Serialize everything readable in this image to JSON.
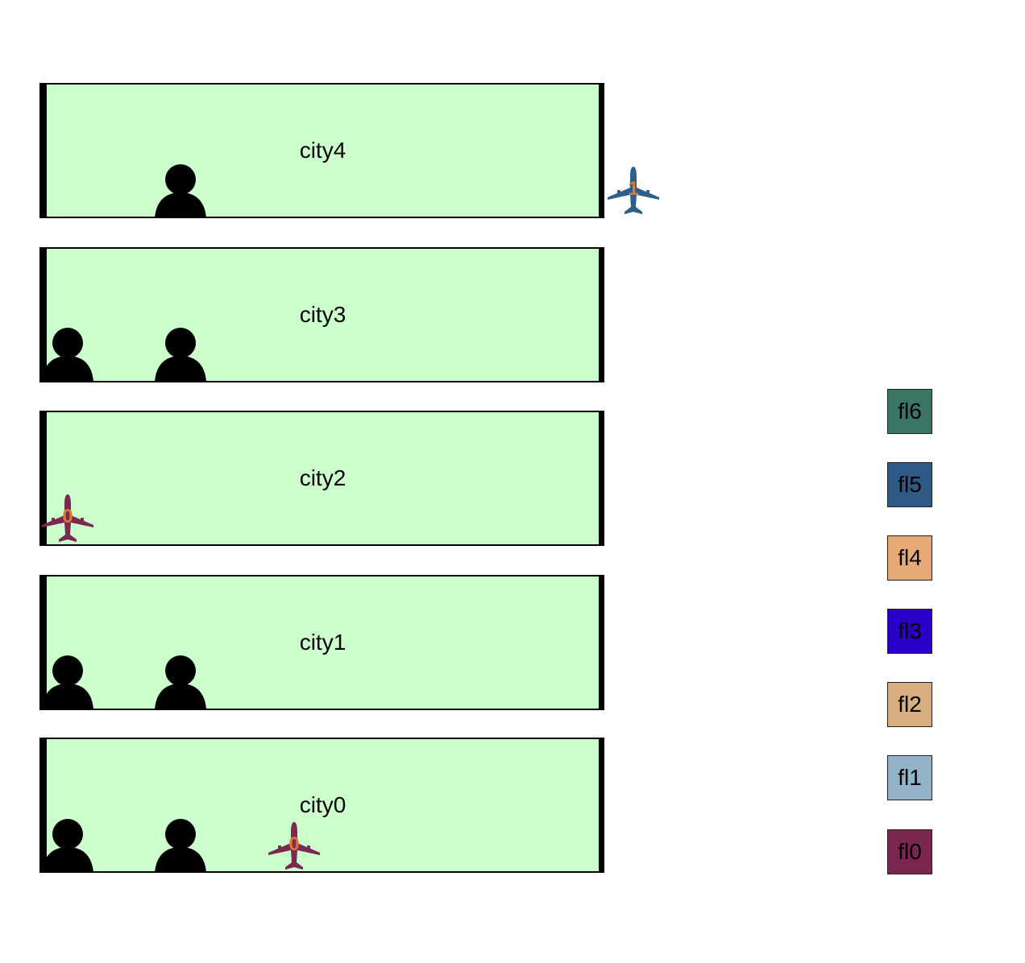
{
  "cities": [
    {
      "label": "city4"
    },
    {
      "label": "city3"
    },
    {
      "label": "city2"
    },
    {
      "label": "city1"
    },
    {
      "label": "city0"
    }
  ],
  "planes": [
    {
      "id": "plane-1",
      "number": "1",
      "color": "#2e5f8a"
    },
    {
      "id": "plane-0-city2",
      "number": "0",
      "color": "#7a2a52"
    },
    {
      "id": "plane-0-city0",
      "number": "0",
      "color": "#7a2a52"
    }
  ],
  "floors": [
    {
      "label": "fl6",
      "color": "#3b7566"
    },
    {
      "label": "fl5",
      "color": "#2f5a85"
    },
    {
      "label": "fl4",
      "color": "#e8aa74"
    },
    {
      "label": "fl3",
      "color": "#2a00c8"
    },
    {
      "label": "fl2",
      "color": "#d9ae80"
    },
    {
      "label": "fl1",
      "color": "#93b3c8"
    },
    {
      "label": "fl0",
      "color": "#7a2650"
    }
  ],
  "icons": {
    "person": "person-icon",
    "plane": "airplane-icon"
  }
}
